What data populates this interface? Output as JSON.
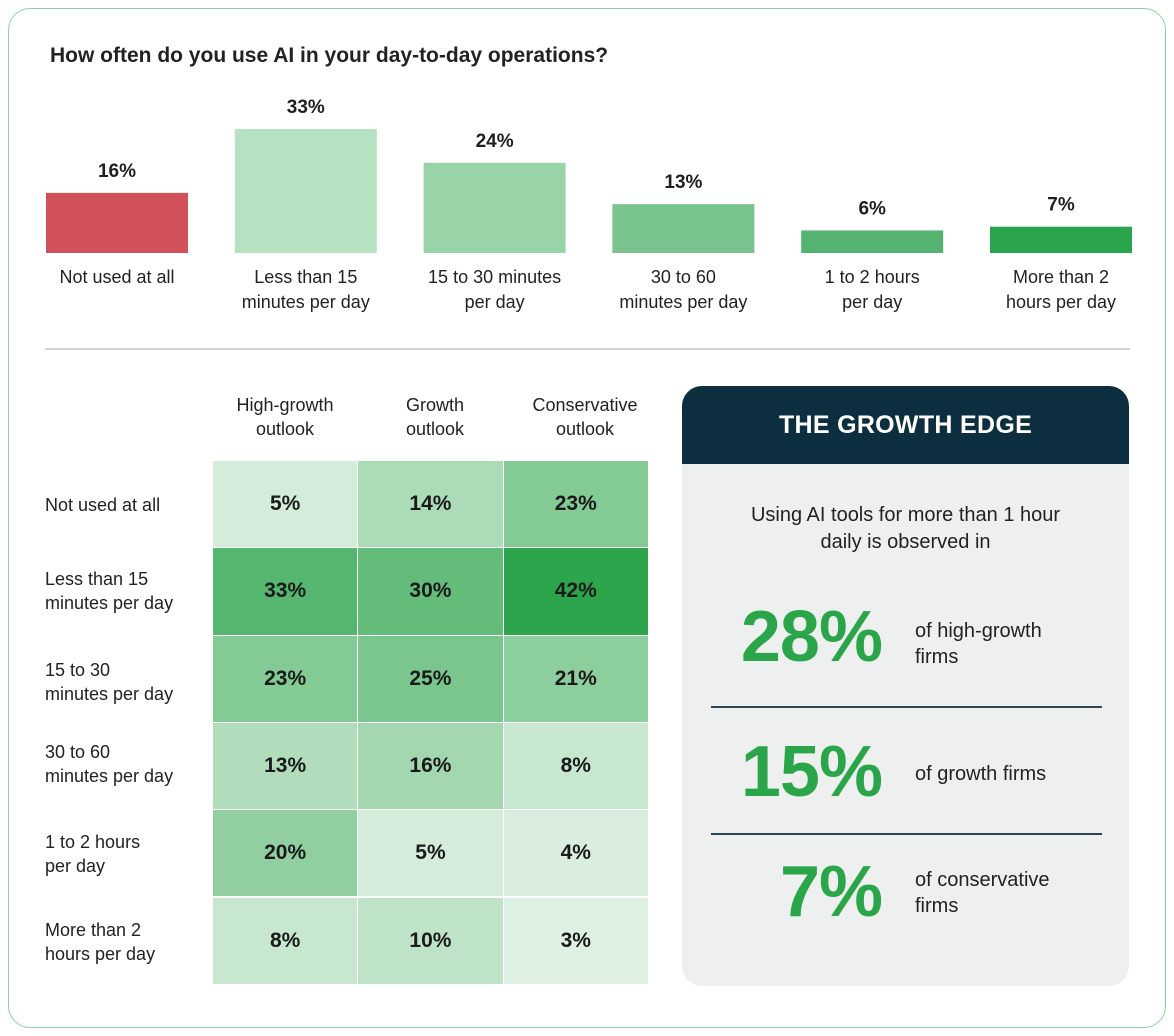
{
  "title": "How often do you use AI in your day-to-day operations?",
  "colors": {
    "not_used": "#d1515a",
    "accent_green": "#2aa54a",
    "edge_header": "#0d2e3e",
    "bar_greens": [
      "#b6e2c2",
      "#98d4a8",
      "#79c48e",
      "#55b371",
      "#2ba54c"
    ]
  },
  "chart_data": [
    {
      "type": "bar",
      "title": "How often do you use AI in your day-to-day operations?",
      "categories": [
        "Not used at all",
        "Less than 15 minutes per day",
        "15 to 30 minutes per day",
        "30 to 60 minutes per day",
        "1 to 2 hours per day",
        "More than 2 hours per day"
      ],
      "category_lines": [
        [
          "Not used at all"
        ],
        [
          "Less than 15",
          "minutes per day"
        ],
        [
          "15 to 30 minutes",
          "per day"
        ],
        [
          "30 to 60",
          "minutes per day"
        ],
        [
          "1 to 2 hours",
          "per day"
        ],
        [
          "More than 2",
          "hours per day"
        ]
      ],
      "values": [
        16,
        33,
        24,
        13,
        6,
        7
      ],
      "value_labels": [
        "16%",
        "33%",
        "24%",
        "13%",
        "6%",
        "7%"
      ],
      "xlabel": "",
      "ylabel": "",
      "ylim": [
        0,
        33
      ]
    },
    {
      "type": "heatmap",
      "columns": [
        "High-growth outlook",
        "Growth outlook",
        "Conservative outlook"
      ],
      "rows": [
        "Not used at all",
        "Less than 15 minutes per day",
        "15 to 30 minutes per day",
        "30 to 60 minutes per day",
        "1 to 2 hours per day",
        "More than 2 hours per day"
      ],
      "values": [
        [
          5,
          14,
          23
        ],
        [
          33,
          30,
          42
        ],
        [
          23,
          25,
          21
        ],
        [
          13,
          16,
          8
        ],
        [
          20,
          5,
          4
        ],
        [
          8,
          10,
          3
        ]
      ],
      "value_labels": [
        [
          "5%",
          "14%",
          "23%"
        ],
        [
          "33%",
          "30%",
          "42%"
        ],
        [
          "23%",
          "25%",
          "21%"
        ],
        [
          "13%",
          "16%",
          "8%"
        ],
        [
          "20%",
          "5%",
          "4%"
        ],
        [
          "8%",
          "10%",
          "3%"
        ]
      ]
    }
  ],
  "table": {
    "col_headers": [
      [
        "High-growth",
        "outlook"
      ],
      [
        "Growth",
        "outlook"
      ],
      [
        "Conservative",
        "outlook"
      ]
    ],
    "row_labels": [
      [
        "Not used at all"
      ],
      [
        "Less than 15",
        "minutes per day"
      ],
      [
        "15 to 30",
        "minutes per day"
      ],
      [
        "30 to 60",
        "minutes per day"
      ],
      [
        "1 to 2 hours",
        "per day"
      ],
      [
        "More than 2",
        "hours per day"
      ]
    ]
  },
  "growth_edge": {
    "title": "THE GROWTH EDGE",
    "intro_line1": "Using AI tools for more than 1 hour",
    "intro_line2": "daily is observed in",
    "stats": [
      {
        "value": "28%",
        "label_line1": "of high-growth",
        "label_line2": "firms"
      },
      {
        "value": "15%",
        "label_line1": "of growth firms",
        "label_line2": ""
      },
      {
        "value": "7%",
        "label_line1": "of conservative",
        "label_line2": "firms"
      }
    ]
  }
}
